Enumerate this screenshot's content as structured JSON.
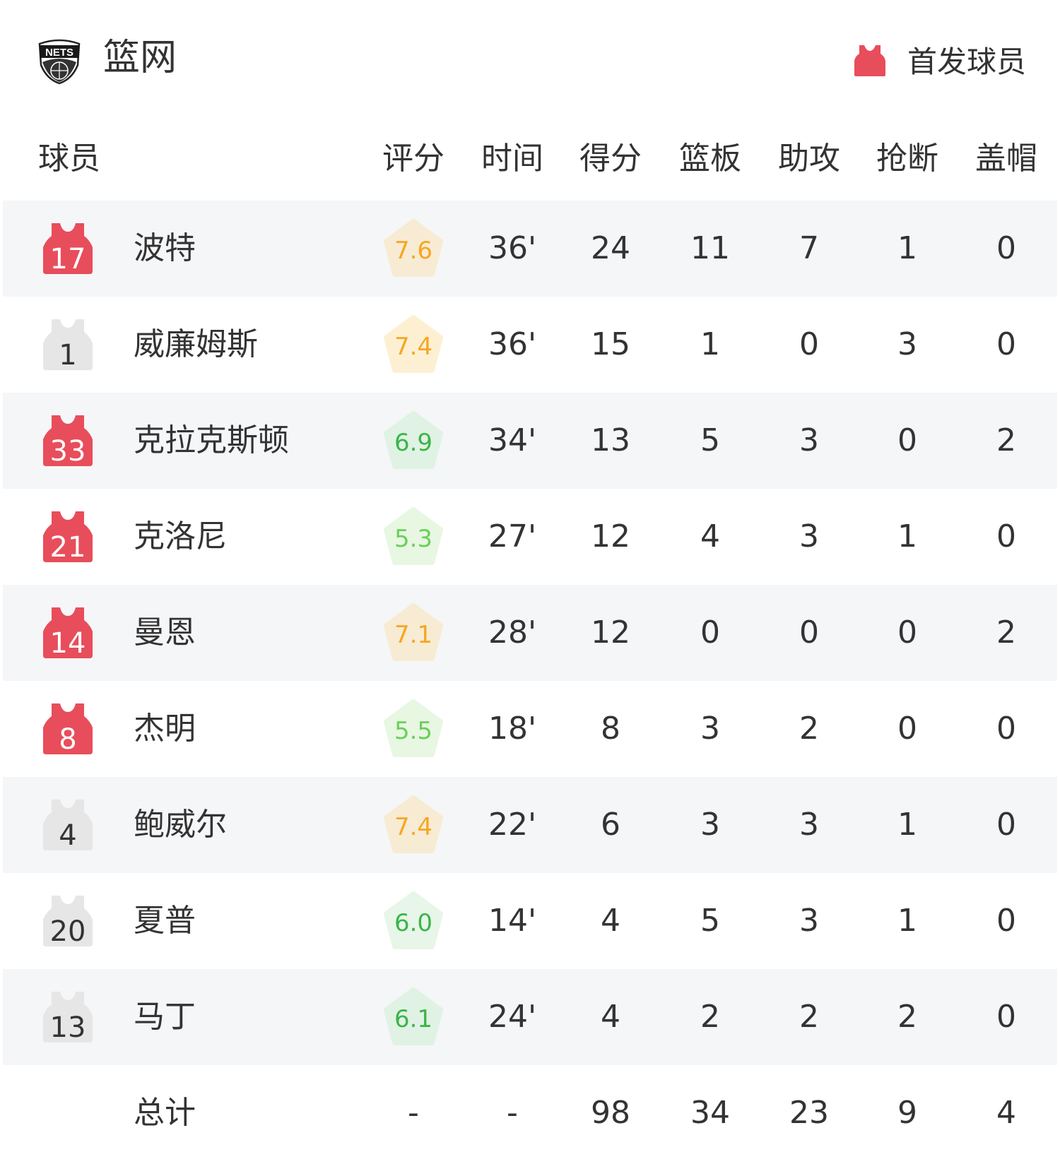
{
  "team": {
    "name": "篮网",
    "logo_text": "NETS",
    "logo_icon": "nets-logo"
  },
  "legend": {
    "label": "首发球员",
    "icon": "jersey-icon",
    "color": "#e84d5b"
  },
  "colors": {
    "starter": "#e84d5b",
    "bench": "#e6e6e6",
    "row_alt": "#f5f6f8"
  },
  "columns": [
    "球员",
    "评分",
    "时间",
    "得分",
    "篮板",
    "助攻",
    "抢断",
    "盖帽"
  ],
  "players": [
    {
      "number": "17",
      "name": "波特",
      "starter": true,
      "rating": "7.6",
      "rating_color": "#f5a623",
      "rating_bg": "#f8ebd3",
      "time": "36'",
      "pts": "24",
      "reb": "11",
      "ast": "7",
      "stl": "1",
      "blk": "0"
    },
    {
      "number": "1",
      "name": "威廉姆斯",
      "starter": false,
      "rating": "7.4",
      "rating_color": "#f5a623",
      "rating_bg": "#fdf0d2",
      "time": "36'",
      "pts": "15",
      "reb": "1",
      "ast": "0",
      "stl": "3",
      "blk": "0"
    },
    {
      "number": "33",
      "name": "克拉克斯顿",
      "starter": true,
      "rating": "6.9",
      "rating_color": "#3cb44b",
      "rating_bg": "#e0f2e4",
      "time": "34'",
      "pts": "13",
      "reb": "5",
      "ast": "3",
      "stl": "0",
      "blk": "2"
    },
    {
      "number": "21",
      "name": "克洛尼",
      "starter": true,
      "rating": "5.3",
      "rating_color": "#6ccf5a",
      "rating_bg": "#e7f7e2",
      "time": "27'",
      "pts": "12",
      "reb": "4",
      "ast": "3",
      "stl": "1",
      "blk": "0"
    },
    {
      "number": "14",
      "name": "曼恩",
      "starter": true,
      "rating": "7.1",
      "rating_color": "#f5a623",
      "rating_bg": "#f8ebd3",
      "time": "28'",
      "pts": "12",
      "reb": "0",
      "ast": "0",
      "stl": "0",
      "blk": "2"
    },
    {
      "number": "8",
      "name": "杰明",
      "starter": true,
      "rating": "5.5",
      "rating_color": "#6ccf5a",
      "rating_bg": "#e7f7e2",
      "time": "18'",
      "pts": "8",
      "reb": "3",
      "ast": "2",
      "stl": "0",
      "blk": "0"
    },
    {
      "number": "4",
      "name": "鲍威尔",
      "starter": false,
      "rating": "7.4",
      "rating_color": "#f5a623",
      "rating_bg": "#f8ebd3",
      "time": "22'",
      "pts": "6",
      "reb": "3",
      "ast": "3",
      "stl": "1",
      "blk": "0"
    },
    {
      "number": "20",
      "name": "夏普",
      "starter": false,
      "rating": "6.0",
      "rating_color": "#3cb44b",
      "rating_bg": "#e7f6e8",
      "time": "14'",
      "pts": "4",
      "reb": "5",
      "ast": "3",
      "stl": "1",
      "blk": "0"
    },
    {
      "number": "13",
      "name": "马丁",
      "starter": false,
      "rating": "6.1",
      "rating_color": "#3cb44b",
      "rating_bg": "#e0f2e4",
      "time": "24'",
      "pts": "4",
      "reb": "2",
      "ast": "2",
      "stl": "2",
      "blk": "0"
    }
  ],
  "totals": {
    "label": "总计",
    "rating": "-",
    "time": "-",
    "pts": "98",
    "reb": "34",
    "ast": "23",
    "stl": "9",
    "blk": "4"
  }
}
